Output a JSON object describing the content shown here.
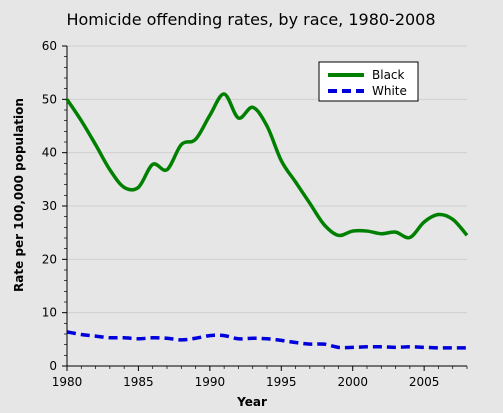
{
  "chart_data": {
    "type": "line",
    "title": "Homicide offending rates, by race, 1980-2008",
    "xlabel": "Year",
    "ylabel": "Rate per 100,000 population",
    "xlim": [
      1980,
      2008
    ],
    "ylim": [
      0,
      60
    ],
    "x_ticks": [
      1980,
      1985,
      1990,
      1995,
      2000,
      2005
    ],
    "y_ticks": [
      0,
      10,
      20,
      30,
      40,
      50,
      60
    ],
    "grid": "horizontal",
    "legend_position": "top-right",
    "x": [
      1980,
      1981,
      1982,
      1983,
      1984,
      1985,
      1986,
      1987,
      1988,
      1989,
      1990,
      1991,
      1992,
      1993,
      1994,
      1995,
      1996,
      1997,
      1998,
      1999,
      2000,
      2001,
      2002,
      2003,
      2004,
      2005,
      2006,
      2007,
      2008
    ],
    "series": [
      {
        "name": "Black",
        "color": "#008000",
        "style": "solid",
        "values": [
          50.0,
          46.0,
          41.5,
          36.8,
          33.5,
          33.5,
          37.8,
          36.8,
          41.5,
          42.5,
          47.0,
          51.0,
          46.5,
          48.5,
          45.0,
          38.5,
          34.5,
          30.5,
          26.5,
          24.5,
          25.3,
          25.3,
          24.8,
          25.1,
          24.1,
          27.0,
          28.4,
          27.5,
          24.5
        ]
      },
      {
        "name": "White",
        "color": "#0000dd",
        "style": "dashed",
        "values": [
          6.4,
          5.9,
          5.6,
          5.3,
          5.3,
          5.1,
          5.3,
          5.2,
          4.9,
          5.2,
          5.7,
          5.7,
          5.1,
          5.2,
          5.1,
          4.8,
          4.4,
          4.1,
          4.1,
          3.5,
          3.5,
          3.6,
          3.6,
          3.5,
          3.6,
          3.5,
          3.4,
          3.4,
          3.4
        ]
      }
    ]
  }
}
